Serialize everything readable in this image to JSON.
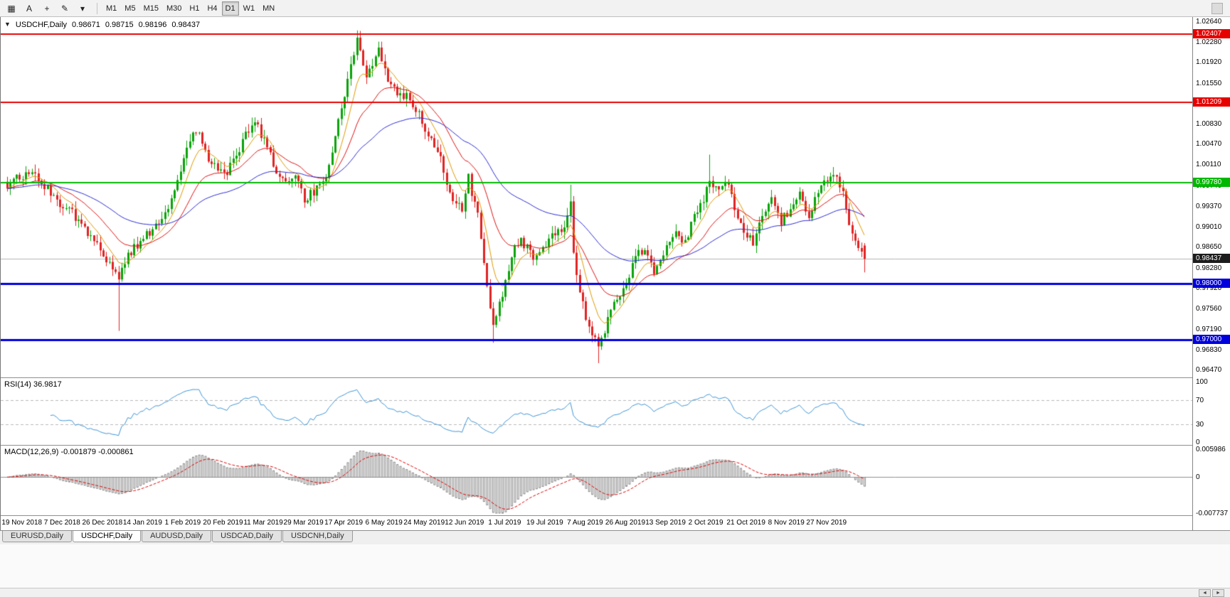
{
  "toolbar": {
    "icons": [
      {
        "name": "tile-windows-icon",
        "glyph": "▦"
      },
      {
        "name": "text-annotation-icon",
        "glyph": "A"
      },
      {
        "name": "crosshair-icon",
        "glyph": "+"
      },
      {
        "name": "draw-line-icon",
        "glyph": "✎"
      },
      {
        "name": "indicators-dropdown-icon",
        "glyph": "▾"
      }
    ],
    "timeframes": [
      {
        "label": "M1",
        "active": false
      },
      {
        "label": "M5",
        "active": false
      },
      {
        "label": "M15",
        "active": false
      },
      {
        "label": "M30",
        "active": false
      },
      {
        "label": "H1",
        "active": false
      },
      {
        "label": "H4",
        "active": false
      },
      {
        "label": "D1",
        "active": true
      },
      {
        "label": "W1",
        "active": false
      },
      {
        "label": "MN",
        "active": false
      }
    ]
  },
  "chart_header": {
    "marker": "▼",
    "symbol": "USDCHF,Daily",
    "open": "0.98671",
    "high": "0.98715",
    "low": "0.98196",
    "close": "0.98437"
  },
  "price_axis": {
    "ticks": [
      "1.02640",
      "1.02280",
      "1.01920",
      "1.01550",
      "1.01190",
      "1.00830",
      "1.00470",
      "1.00110",
      "0.99740",
      "0.99370",
      "0.99010",
      "0.98650",
      "0.98280",
      "0.97920",
      "0.97560",
      "0.97190",
      "0.96830",
      "0.96470"
    ]
  },
  "rsi_panel": {
    "label": "RSI(14) 36.9817",
    "period": 14,
    "axis": [
      "100",
      "70",
      "30",
      "0"
    ],
    "levels": [
      70,
      30
    ],
    "color": "#3d94d6"
  },
  "macd_panel": {
    "label": "MACD(12,26,9) -0.001879 -0.000861",
    "axis": [
      {
        "label": "0.005986",
        "value": 0.005986
      },
      {
        "label": "0",
        "value": 0
      },
      {
        "label": "-0.007737",
        "value": -0.007737
      }
    ],
    "range_top": 0.005986,
    "range_bottom": -0.007737,
    "histogram_color": "#8a8a8a",
    "signal_color": "#dd0000"
  },
  "date_axis": {
    "labels": [
      "19 Nov 2018",
      "7 Dec 2018",
      "26 Dec 2018",
      "14 Jan 2019",
      "1 Feb 2019",
      "20 Feb 2019",
      "11 Mar 2019",
      "29 Mar 2019",
      "17 Apr 2019",
      "6 May 2019",
      "24 May 2019",
      "12 Jun 2019",
      "1 Jul 2019",
      "19 Jul 2019",
      "7 Aug 2019",
      "26 Aug 2019",
      "13 Sep 2019",
      "2 Oct 2019",
      "21 Oct 2019",
      "8 Nov 2019",
      "27 Nov 2019"
    ]
  },
  "tabs": [
    {
      "label": "EURUSD,Daily",
      "active": false
    },
    {
      "label": "USDCHF,Daily",
      "active": true
    },
    {
      "label": "AUDUSD,Daily",
      "active": false
    },
    {
      "label": "USDCAD,Daily",
      "active": false
    },
    {
      "label": "USDCNH,Daily",
      "active": false
    }
  ],
  "bottom_bar": {
    "left_arrow": "◄",
    "right_arrow": "►"
  },
  "chart_data": {
    "type": "candlestick",
    "symbol": "USDCHF",
    "timeframe": "Daily",
    "bars": 278,
    "price_top": 1.0269,
    "price_bottom": 0.9635,
    "colors": {
      "up": "#0aa30a",
      "down": "#e02222"
    },
    "bid": {
      "price": 0.98437,
      "label": "0.98437",
      "line_color": "#b4b4b4",
      "badge_color": "#1c1c1c"
    },
    "last_bar": {
      "open": 0.98671,
      "high": 0.98715,
      "low": 0.98196,
      "close": 0.98437
    },
    "horizontal_lines": [
      {
        "price": 1.02407,
        "label": "1.02407",
        "color": "#e60000",
        "width": 2
      },
      {
        "price": 1.01209,
        "label": "1.01209",
        "color": "#e60000",
        "width": 2
      },
      {
        "price": 0.9978,
        "label": "0.99780",
        "color": "#00b800",
        "width": 2
      },
      {
        "price": 0.98,
        "label": "0.98000",
        "color": "#0000dd",
        "width": 3
      },
      {
        "price": 0.97,
        "label": "0.97000",
        "color": "#0000dd",
        "width": 3
      }
    ],
    "moving_averages": [
      {
        "period": 8,
        "type": "ema",
        "color": "#e09800"
      },
      {
        "period": 21,
        "type": "ema",
        "color": "#e01010"
      },
      {
        "period": 55,
        "type": "ema",
        "color": "#2b2bd4"
      }
    ],
    "close_keypoints": [
      [
        0,
        0.9975
      ],
      [
        8,
        0.9998
      ],
      [
        15,
        0.9952
      ],
      [
        21,
        0.9927
      ],
      [
        27,
        0.988
      ],
      [
        32,
        0.9845
      ],
      [
        36,
        0.9812
      ],
      [
        39,
        0.985
      ],
      [
        45,
        0.9885
      ],
      [
        52,
        0.9935
      ],
      [
        58,
        1.004
      ],
      [
        61,
        1.0072
      ],
      [
        65,
        1.002
      ],
      [
        70,
        0.9992
      ],
      [
        75,
        1.0035
      ],
      [
        79,
        1.0085
      ],
      [
        81,
        1.0078
      ],
      [
        86,
        1.001
      ],
      [
        90,
        0.9975
      ],
      [
        93,
        0.9988
      ],
      [
        96,
        0.9948
      ],
      [
        99,
        0.9962
      ],
      [
        103,
        0.999
      ],
      [
        106,
        1.006
      ],
      [
        109,
        1.013
      ],
      [
        111,
        1.0195
      ],
      [
        113,
        1.0228
      ],
      [
        116,
        1.0172
      ],
      [
        118,
        1.019
      ],
      [
        120,
        1.0212
      ],
      [
        124,
        1.015
      ],
      [
        127,
        1.0128
      ],
      [
        129,
        1.014
      ],
      [
        133,
        1.0098
      ],
      [
        136,
        1.0065
      ],
      [
        140,
        1.0025
      ],
      [
        143,
        0.9962
      ],
      [
        147,
        0.993
      ],
      [
        149,
        0.9985
      ],
      [
        152,
        0.9918
      ],
      [
        155,
        0.979
      ],
      [
        157,
        0.973
      ],
      [
        159,
        0.9762
      ],
      [
        163,
        0.985
      ],
      [
        166,
        0.988
      ],
      [
        170,
        0.9842
      ],
      [
        173,
        0.9856
      ],
      [
        177,
        0.989
      ],
      [
        180,
        0.9902
      ],
      [
        182,
        0.9942
      ],
      [
        183,
        0.985
      ],
      [
        186,
        0.9762
      ],
      [
        188,
        0.9722
      ],
      [
        191,
        0.9685
      ],
      [
        194,
        0.9738
      ],
      [
        197,
        0.9775
      ],
      [
        200,
        0.98
      ],
      [
        203,
        0.9845
      ],
      [
        206,
        0.9866
      ],
      [
        209,
        0.9822
      ],
      [
        212,
        0.9855
      ],
      [
        216,
        0.9895
      ],
      [
        219,
        0.9872
      ],
      [
        222,
        0.992
      ],
      [
        225,
        0.9952
      ],
      [
        227,
        0.999
      ],
      [
        229,
        0.9966
      ],
      [
        232,
        0.9986
      ],
      [
        235,
        0.9936
      ],
      [
        238,
        0.9896
      ],
      [
        241,
        0.9872
      ],
      [
        244,
        0.992
      ],
      [
        247,
        0.995
      ],
      [
        250,
        0.9906
      ],
      [
        253,
        0.9936
      ],
      [
        256,
        0.9956
      ],
      [
        259,
        0.9922
      ],
      [
        262,
        0.9956
      ],
      [
        265,
        0.9986
      ],
      [
        267,
        1.0
      ],
      [
        270,
        0.996
      ],
      [
        272,
        0.9906
      ],
      [
        274,
        0.988
      ],
      [
        276,
        0.9858
      ],
      [
        277,
        0.98437
      ]
    ],
    "spikes": {
      "36": {
        "low": 0.9716
      },
      "113": {
        "high": 1.0239
      },
      "120": {
        "high": 1.0228
      },
      "157": {
        "low": 0.9695
      },
      "182": {
        "high": 0.9975
      },
      "191": {
        "low": 0.9659
      },
      "227": {
        "high": 1.0028
      },
      "267": {
        "high": 1.0006
      }
    }
  }
}
